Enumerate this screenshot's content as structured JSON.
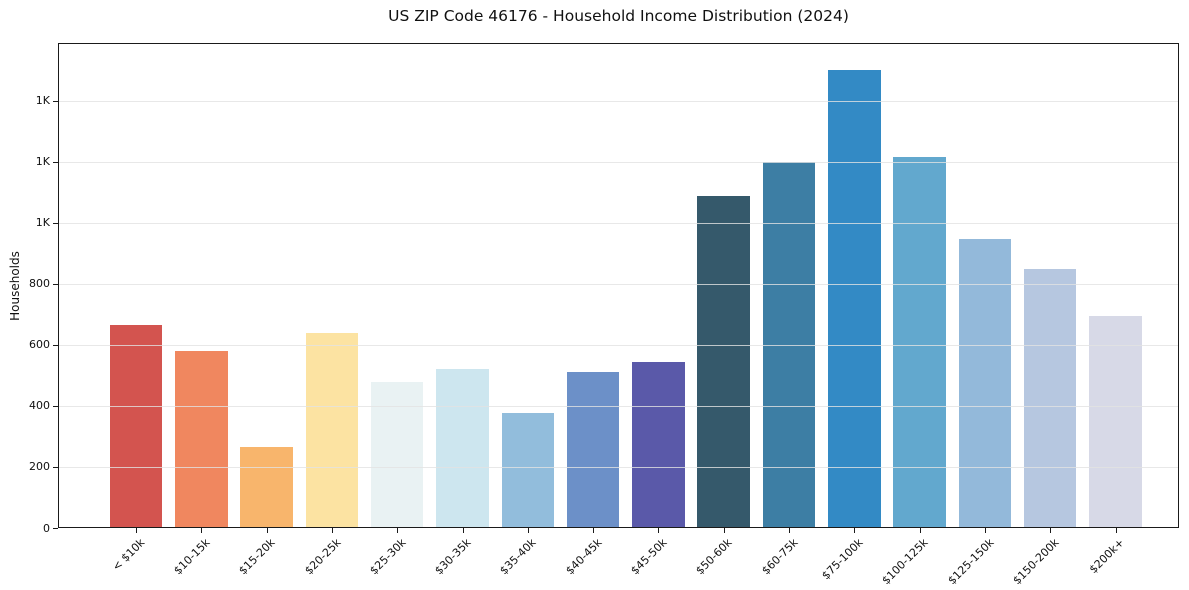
{
  "chart_data": {
    "type": "bar",
    "title": "US ZIP Code 46176 - Household Income Distribution (2024)",
    "xlabel": "",
    "ylabel": "Households",
    "categories": [
      "< $10k",
      "$10-15k",
      "$15-20k",
      "$20-25k",
      "$25-30k",
      "$30-35k",
      "$35-40k",
      "$40-45k",
      "$45-50k",
      "$50-60k",
      "$60-75k",
      "$75-100k",
      "$100-125k",
      "$125-150k",
      "$150-200k",
      "$200k+"
    ],
    "values": [
      665,
      580,
      265,
      640,
      478,
      520,
      378,
      510,
      543,
      1088,
      1200,
      1500,
      1215,
      948,
      848,
      695
    ],
    "bar_colors": [
      "#d3544f",
      "#f0875f",
      "#f8b56c",
      "#fce3a2",
      "#e9f2f3",
      "#cde6ef",
      "#92bddc",
      "#6c90c8",
      "#5a59a9",
      "#35596b",
      "#3d7ea4",
      "#338ac5",
      "#62a8ce",
      "#93b9da",
      "#b6c7e0",
      "#d7d9e7"
    ],
    "ylim": [
      0,
      1590
    ],
    "yticks": [
      0,
      200,
      400,
      600,
      800,
      1000,
      1200,
      1400
    ],
    "ytick_labels": [
      "0",
      "200",
      "400",
      "600",
      "800",
      "1K",
      "1K",
      "1K"
    ],
    "grid": "horizontal",
    "legend": "none",
    "x_tick_rotation": 45,
    "spines": "all",
    "background_color": "#ffffff",
    "text_color": "#111111"
  }
}
